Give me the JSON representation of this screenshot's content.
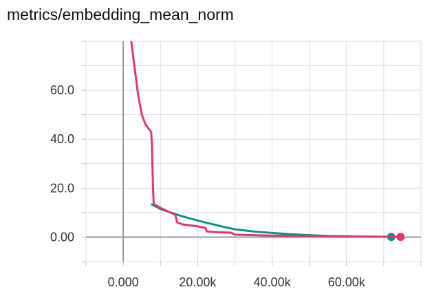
{
  "chart_data": {
    "type": "line",
    "title": "metrics/embedding_mean_norm",
    "xlabel": "",
    "ylabel": "",
    "xlim": [
      -10000,
      80000
    ],
    "ylim": [
      -10,
      80
    ],
    "x_ticks": [
      {
        "value": 0,
        "label": "0.000"
      },
      {
        "value": 20000,
        "label": "20.00k"
      },
      {
        "value": 40000,
        "label": "40.00k"
      },
      {
        "value": 60000,
        "label": "60.00k"
      }
    ],
    "y_ticks": [
      {
        "value": 0,
        "label": "0.00"
      },
      {
        "value": 20,
        "label": "20.0"
      },
      {
        "value": 40,
        "label": "40.0"
      },
      {
        "value": 60,
        "label": "60.0"
      }
    ],
    "grid": true,
    "legend": "none",
    "series": [
      {
        "color": "#009688",
        "end_marker": true,
        "x": [
          7500,
          10000,
          12500,
          15000,
          17500,
          20000,
          22500,
          25000,
          27500,
          30000,
          35000,
          40000,
          45000,
          50000,
          55000,
          60000,
          65000,
          70000,
          72000
        ],
        "y": [
          13.5,
          11.5,
          10.2,
          8.9,
          7.8,
          6.8,
          5.8,
          4.9,
          4.0,
          3.2,
          2.3,
          1.7,
          1.2,
          0.8,
          0.5,
          0.35,
          0.2,
          0.12,
          0.1
        ]
      },
      {
        "color": "#e8336e",
        "end_marker": true,
        "x": [
          2000,
          3000,
          4000,
          5000,
          6000,
          7500,
          7700,
          8000,
          8200,
          10000,
          12000,
          13500,
          14000,
          14500,
          16000,
          20000,
          22000,
          22500,
          25000,
          29000,
          30000,
          35000,
          40000,
          50000,
          60000,
          70000,
          74500
        ],
        "y": [
          82,
          70,
          58,
          50,
          46,
          43,
          38,
          20,
          13.5,
          12,
          10.5,
          9.5,
          9,
          6,
          5.2,
          4.4,
          3.8,
          2.3,
          2.0,
          1.8,
          1.0,
          0.8,
          0.6,
          0.4,
          0.3,
          0.15,
          0.1
        ]
      }
    ]
  }
}
